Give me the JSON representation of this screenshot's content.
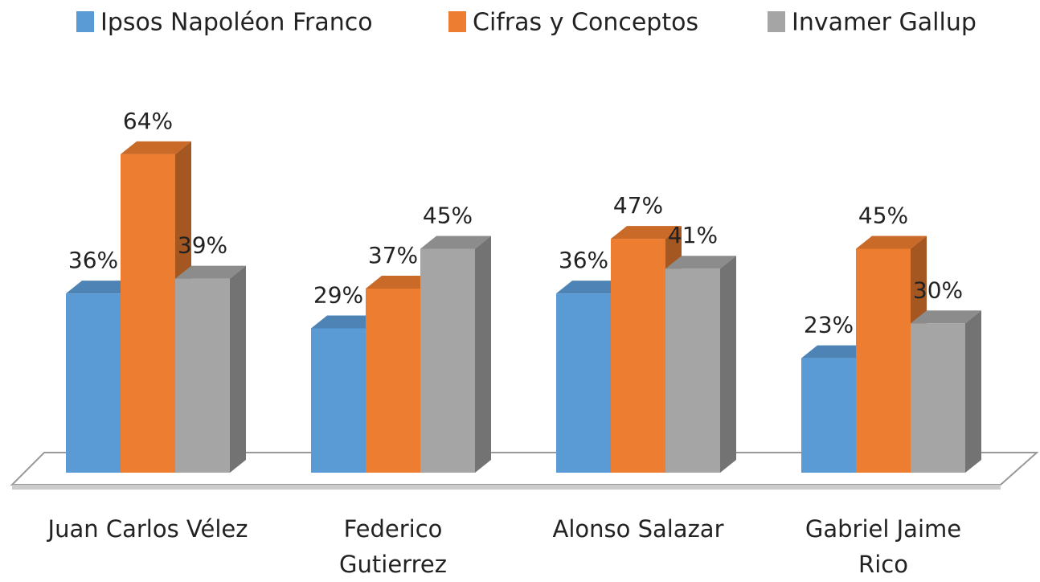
{
  "chart_data": {
    "type": "bar3d",
    "categories": [
      "Juan Carlos Vélez",
      "Federico Gutierrez",
      "Alonso Salazar",
      "Gabriel Jaime Rico"
    ],
    "series": [
      {
        "name": "Ipsos Napoléon Franco",
        "color": "#5b9bd5",
        "values": [
          36,
          29,
          36,
          23
        ],
        "value_labels": [
          "36%",
          "29%",
          "36%",
          "23%"
        ]
      },
      {
        "name": "Cifras y Conceptos",
        "color": "#ed7d31",
        "values": [
          64,
          37,
          47,
          45
        ],
        "value_labels": [
          "64%",
          "37%",
          "47%",
          "45%"
        ]
      },
      {
        "name": "Invamer Gallup",
        "color": "#a5a5a5",
        "values": [
          39,
          45,
          41,
          30
        ],
        "value_labels": [
          "39%",
          "45%",
          "41%",
          "30%"
        ]
      }
    ],
    "legend": "top"
  }
}
